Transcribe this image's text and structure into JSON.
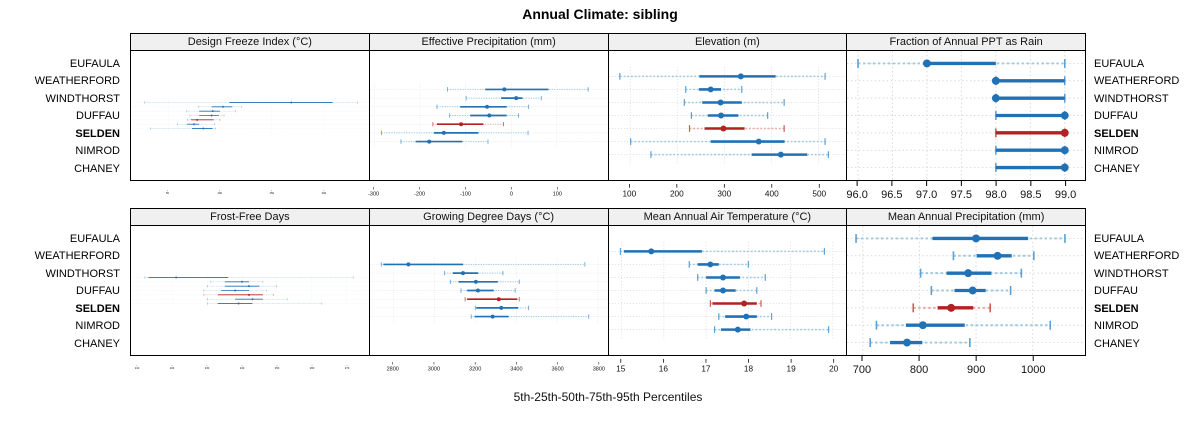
{
  "title": "Annual Climate: sibling",
  "caption": "5th-25th-50th-75th-95th Percentiles",
  "sites": [
    "EUFAULA",
    "WEATHERFORD",
    "WINDTHORST",
    "DUFFAU",
    "SELDEN",
    "NIMROD",
    "CHANEY"
  ],
  "highlight_site": "SELDEN",
  "colors": {
    "blue_dark": "#2171b5",
    "blue_light": "#9ecae1",
    "blue_cap": "#5b9fd4",
    "red_dark": "#b22222",
    "red_light": "#e8aaa4",
    "red_cap": "#cd5c55",
    "grid": "#d9d9d9",
    "strip_bg": "#f0f0f0",
    "border": "#000000"
  },
  "chart_data": {
    "type": "dotplot-percentile",
    "note": "each series value array is [p5, p25, p50, p75, p95]; dot = median, thick bar = p25-p75, dashed whisker = p5-p95",
    "rows_top_to_bottom": [
      "EUFAULA",
      "WEATHERFORD",
      "WINDTHORST",
      "DUFFAU",
      "SELDEN",
      "NIMROD",
      "CHANEY"
    ],
    "panels": [
      {
        "title": "Design Freeze Index (°C)",
        "grid_row": 1,
        "xlim": [
          14,
          244
        ],
        "ticks": [
          50,
          100,
          150,
          200
        ],
        "tick_labels": [
          "50",
          "100",
          "150",
          "200"
        ],
        "series": [
          {
            "site": "EUFAULA",
            "p": [
              27,
              109,
              169,
              209,
              233
            ]
          },
          {
            "site": "WEATHERFORD",
            "p": [
              79,
              92,
              103,
              112,
              121
            ]
          },
          {
            "site": "WINDTHORST",
            "p": [
              68,
              80,
              93,
              100,
              115
            ]
          },
          {
            "site": "DUFFAU",
            "p": [
              71,
              80,
              92,
              99,
              104
            ]
          },
          {
            "site": "SELDEN",
            "p": [
              69,
              72,
              78,
              94,
              100
            ]
          },
          {
            "site": "NIMROD",
            "p": [
              59,
              68,
              75,
              80,
              95
            ]
          },
          {
            "site": "CHANEY",
            "p": [
              33,
              73,
              84,
              93,
              96
            ]
          }
        ]
      },
      {
        "title": "Effective Precipitation (mm)",
        "grid_row": 1,
        "xlim": [
          -310,
          212
        ],
        "ticks": [
          -300,
          -200,
          -100,
          0,
          100
        ],
        "tick_labels": [
          "-300",
          "-200",
          "-100",
          "0",
          "100"
        ],
        "series": [
          {
            "site": "EUFAULA",
            "p": [
              -140,
              -57,
              -15,
              82,
              169
            ]
          },
          {
            "site": "WEATHERFORD",
            "p": [
              -99,
              -22,
              11,
              25,
              66
            ]
          },
          {
            "site": "WINDTHORST",
            "p": [
              -163,
              -112,
              -53,
              -10,
              38
            ]
          },
          {
            "site": "DUFFAU",
            "p": [
              -135,
              -90,
              -48,
              -10,
              16
            ]
          },
          {
            "site": "SELDEN",
            "p": [
              -172,
              -163,
              -110,
              -61,
              -17
            ]
          },
          {
            "site": "NIMROD",
            "p": [
              -285,
              -170,
              -148,
              -72,
              37
            ]
          },
          {
            "site": "CHANEY",
            "p": [
              -242,
              -210,
              -180,
              -107,
              -51
            ]
          }
        ]
      },
      {
        "title": "Elevation (m)",
        "grid_row": 1,
        "xlim": [
          55,
          560
        ],
        "ticks": [
          100,
          200,
          300,
          400,
          500
        ],
        "tick_labels": [
          "100",
          "200",
          "300",
          "400",
          "500"
        ],
        "series": [
          {
            "site": "EUFAULA",
            "p": [
              78,
              247,
              335,
              409,
              514
            ]
          },
          {
            "site": "WEATHERFORD",
            "p": [
              218,
              246,
              271,
              293,
              337
            ]
          },
          {
            "site": "WINDTHORST",
            "p": [
              215,
              253,
              292,
              337,
              427
            ]
          },
          {
            "site": "DUFFAU",
            "p": [
              230,
              265,
              293,
              330,
              392
            ]
          },
          {
            "site": "SELDEN",
            "p": [
              226,
              258,
              298,
              343,
              427
            ]
          },
          {
            "site": "NIMROD",
            "p": [
              101,
              271,
              373,
              428,
              514
            ]
          },
          {
            "site": "CHANEY",
            "p": [
              144,
              358,
              420,
              476,
              521
            ]
          }
        ]
      },
      {
        "title": "Fraction of Annual PPT as Rain",
        "grid_row": 1,
        "xlim": [
          95.84,
          99.29
        ],
        "ticks": [
          96.0,
          96.5,
          97.0,
          97.5,
          98.0,
          98.5,
          99.0
        ],
        "tick_labels": [
          "96.0",
          "96.5",
          "97.0",
          "97.5",
          "98.0",
          "98.5",
          "99.0"
        ],
        "series": [
          {
            "site": "EUFAULA",
            "p": [
              96.0,
              97.0,
              97.0,
              98.0,
              99.0
            ]
          },
          {
            "site": "WEATHERFORD",
            "p": [
              98.0,
              98.0,
              98.0,
              99.0,
              99.0
            ]
          },
          {
            "site": "WINDTHORST",
            "p": [
              98.0,
              98.0,
              98.0,
              99.0,
              99.0
            ]
          },
          {
            "site": "DUFFAU",
            "p": [
              98.0,
              98.0,
              99.0,
              99.0,
              99.0
            ]
          },
          {
            "site": "SELDEN",
            "p": [
              98.0,
              98.0,
              99.0,
              99.0,
              99.0
            ]
          },
          {
            "site": "NIMROD",
            "p": [
              98.0,
              98.0,
              99.0,
              99.0,
              99.0
            ]
          },
          {
            "site": "CHANEY",
            "p": [
              98.0,
              98.0,
              99.0,
              99.0,
              99.0
            ]
          }
        ]
      },
      {
        "title": "Frost-Free Days",
        "grid_row": 2,
        "xlim": [
          208,
          276.5
        ],
        "ticks": [
          210,
          220,
          230,
          240,
          250,
          260,
          270
        ],
        "tick_labels": [
          "210",
          "220",
          "230",
          "240",
          "250",
          "260",
          "270"
        ],
        "series": [
          {
            "site": "EUFAULA",
            "p": [
              212,
              213,
              221,
              236,
              272
            ]
          },
          {
            "site": "WEATHERFORD",
            "p": [
              231,
              235,
              240,
              242,
              246
            ]
          },
          {
            "site": "WINDTHORST",
            "p": [
              230,
              235,
              242,
              245,
              250
            ]
          },
          {
            "site": "DUFFAU",
            "p": [
              229,
              234,
              238,
              242,
              247
            ]
          },
          {
            "site": "SELDEN",
            "p": [
              229,
              233,
              242,
              246,
              249
            ]
          },
          {
            "site": "NIMROD",
            "p": [
              230,
              238,
              243,
              246,
              253
            ]
          },
          {
            "site": "CHANEY",
            "p": [
              230,
              233,
              239,
              243,
              263
            ]
          }
        ]
      },
      {
        "title": "Growing Degree Days (°C)",
        "grid_row": 2,
        "xlim": [
          2685,
          3848
        ],
        "ticks": [
          2800,
          3000,
          3200,
          3400,
          3600,
          3800
        ],
        "tick_labels": [
          "2800",
          "3000",
          "3200",
          "3400",
          "3600",
          "3800"
        ],
        "series": [
          {
            "site": "EUFAULA",
            "p": [
              2740,
              2750,
              2873,
              3140,
              3736
            ]
          },
          {
            "site": "WEATHERFORD",
            "p": [
              3050,
              3090,
              3140,
              3215,
              3335
            ]
          },
          {
            "site": "WINDTHORST",
            "p": [
              3078,
              3118,
              3203,
              3310,
              3415
            ]
          },
          {
            "site": "DUFFAU",
            "p": [
              3130,
              3160,
              3213,
              3290,
              3395
            ]
          },
          {
            "site": "SELDEN",
            "p": [
              3150,
              3160,
              3315,
              3405,
              3415
            ]
          },
          {
            "site": "NIMROD",
            "p": [
              3200,
              3205,
              3327,
              3410,
              3460
            ]
          },
          {
            "site": "CHANEY",
            "p": [
              3180,
              3197,
              3285,
              3363,
              3755
            ]
          }
        ]
      },
      {
        "title": "Mean Annual Air Temperature (°C)",
        "grid_row": 2,
        "xlim": [
          14.7,
          20.33
        ],
        "ticks": [
          15,
          16,
          17,
          18,
          19,
          20
        ],
        "tick_labels": [
          "15",
          "16",
          "17",
          "18",
          "19",
          "20"
        ],
        "series": [
          {
            "site": "EUFAULA",
            "p": [
              14.97,
              15.05,
              15.7,
              16.9,
              19.8
            ]
          },
          {
            "site": "WEATHERFORD",
            "p": [
              16.6,
              16.8,
              17.1,
              17.3,
              18.0
            ]
          },
          {
            "site": "WINDTHORST",
            "p": [
              16.8,
              17.0,
              17.4,
              17.8,
              18.4
            ]
          },
          {
            "site": "DUFFAU",
            "p": [
              17.0,
              17.2,
              17.4,
              17.7,
              18.2
            ]
          },
          {
            "site": "SELDEN",
            "p": [
              17.1,
              17.15,
              17.9,
              18.2,
              18.3
            ]
          },
          {
            "site": "NIMROD",
            "p": [
              17.3,
              17.45,
              17.95,
              18.2,
              18.55
            ]
          },
          {
            "site": "CHANEY",
            "p": [
              17.2,
              17.35,
              17.75,
              18.05,
              19.9
            ]
          }
        ]
      },
      {
        "title": "Mean Annual Precipitation (mm)",
        "grid_row": 2,
        "xlim": [
          672,
          1092
        ],
        "ticks": [
          700,
          800,
          900,
          1000
        ],
        "tick_labels": [
          "700",
          "800",
          "900",
          "1000"
        ],
        "series": [
          {
            "site": "EUFAULA",
            "p": [
              688,
              823,
              900,
              992,
              1057
            ]
          },
          {
            "site": "WEATHERFORD",
            "p": [
              860,
              901,
              938,
              963,
              1002
            ]
          },
          {
            "site": "WINDTHORST",
            "p": [
              802,
              848,
              886,
              927,
              980
            ]
          },
          {
            "site": "DUFFAU",
            "p": [
              821,
              862,
              894,
              917,
              961
            ]
          },
          {
            "site": "SELDEN",
            "p": [
              789,
              832,
              856,
              895,
              925
            ]
          },
          {
            "site": "NIMROD",
            "p": [
              724,
              776,
              806,
              880,
              1031
            ]
          },
          {
            "site": "CHANEY",
            "p": [
              713,
              748,
              778,
              805,
              889
            ]
          }
        ]
      }
    ]
  }
}
